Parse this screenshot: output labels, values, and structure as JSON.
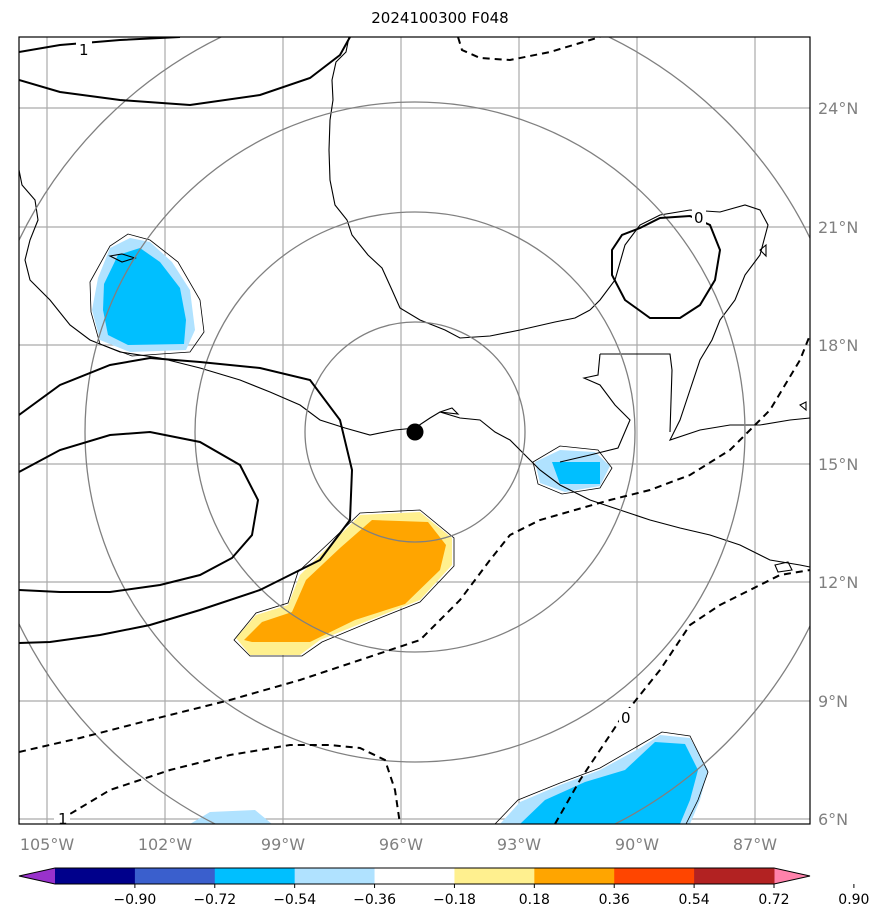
{
  "title": "2024100300 F048",
  "longitude_labels": [
    "105°W",
    "102°W",
    "99°W",
    "96°W",
    "93°W",
    "90°W",
    "87°W"
  ],
  "latitude_labels": [
    "24°N",
    "21°N",
    "18°N",
    "15°N",
    "12°N",
    "9°N",
    "6°N"
  ],
  "contour_labels": {
    "top_left": "1",
    "bottom_left": "1",
    "east_zero": "0",
    "south_zero": "0"
  },
  "colorbar": {
    "ticks": [
      "−0.90",
      "−0.72",
      "−0.54",
      "−0.36",
      "−0.18",
      "0.18",
      "0.36",
      "0.54",
      "0.72",
      "0.90"
    ],
    "colors": [
      "#9932cc",
      "#00008b",
      "#3a5fcd",
      "#00bfff",
      "#b0e2ff",
      "#ffffff",
      "#fff08f",
      "#ffa500",
      "#ff4500",
      "#b22222",
      "#ff82ab"
    ]
  },
  "colors": {
    "grid": "#aaaaaa",
    "range_rings": "#808080",
    "axis_label": "#808080",
    "positive_anomaly": "#ffa500",
    "positive_anomaly_light": "#fff08f",
    "negative_anomaly": "#00bfff",
    "negative_anomaly_light": "#b0e2ff",
    "center_marker": "#000000"
  }
}
